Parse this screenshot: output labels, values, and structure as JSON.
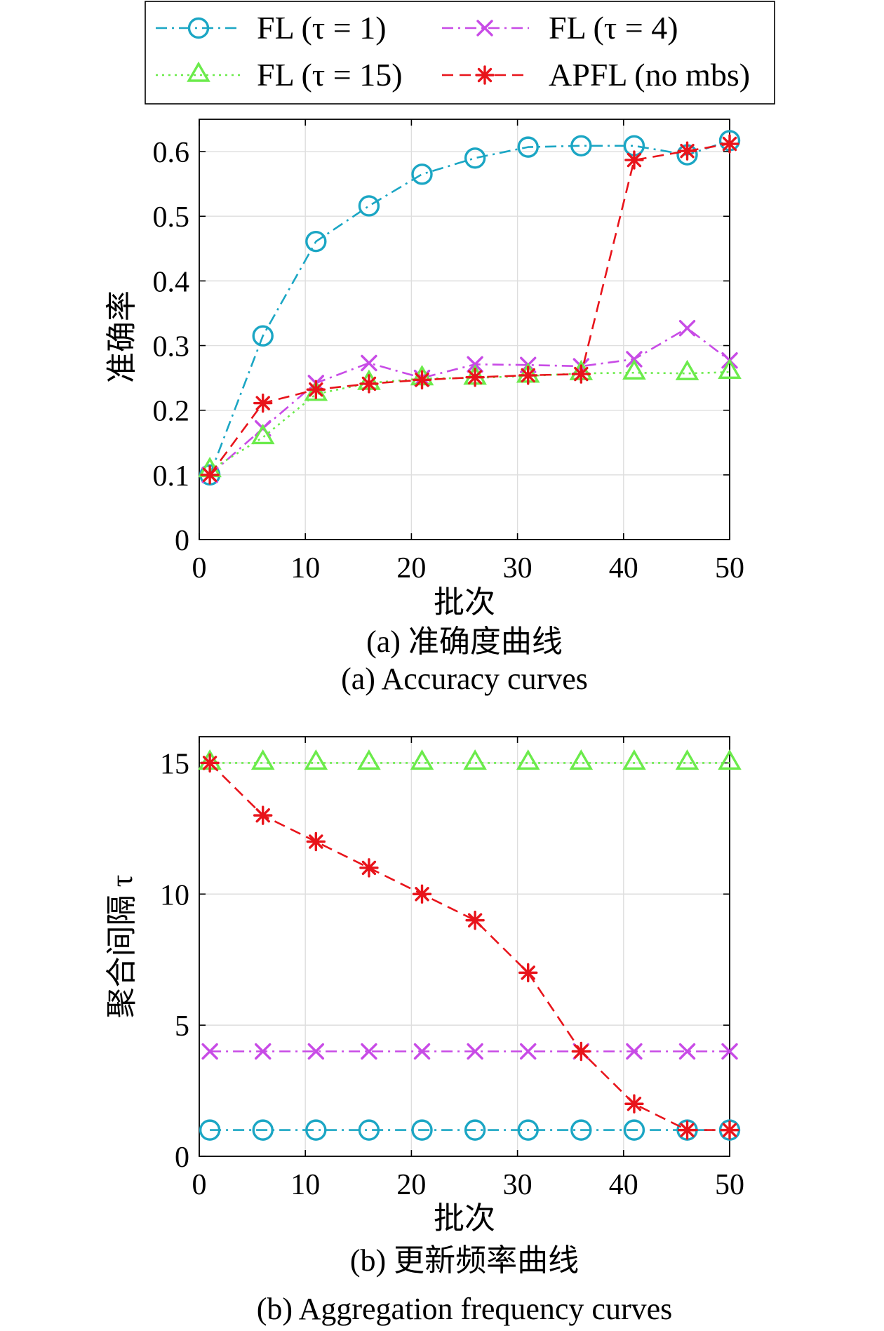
{
  "legend": {
    "placement": "top",
    "entries": [
      {
        "label": "FL (τ = 1)",
        "color": "#1BA6C4",
        "marker": "circle",
        "line_style": "dash-dot"
      },
      {
        "label": "FL (τ = 4)",
        "color": "#C84BE6",
        "marker": "x",
        "line_style": "dash-dot"
      },
      {
        "label": "FL (τ = 15)",
        "color": "#6BEB4B",
        "marker": "triangle",
        "line_style": "dotted"
      },
      {
        "label": "APFL (no mbs)",
        "color": "#E8141B",
        "marker": "asterisk",
        "line_style": "dashed"
      }
    ]
  },
  "chart_data": [
    {
      "type": "line",
      "title": "",
      "xlabel": "批次",
      "ylabel": "准确率",
      "xlim": [
        0,
        50
      ],
      "ylim": [
        0,
        0.65
      ],
      "xticks": [
        0,
        10,
        20,
        30,
        40,
        50
      ],
      "yticks": [
        0,
        0.1,
        0.2,
        0.3,
        0.4,
        0.5,
        0.6
      ],
      "grid": true,
      "x": [
        1,
        6,
        11,
        16,
        21,
        26,
        31,
        36,
        41,
        46,
        50
      ],
      "series": [
        {
          "name": "FL (τ = 1)",
          "values": [
            0.1,
            0.315,
            0.461,
            0.516,
            0.565,
            0.59,
            0.607,
            0.609,
            0.609,
            0.595,
            0.617
          ]
        },
        {
          "name": "FL (τ = 4)",
          "values": [
            0.1,
            0.172,
            0.242,
            0.273,
            0.25,
            0.271,
            0.27,
            0.268,
            0.279,
            0.327,
            0.277
          ]
        },
        {
          "name": "FL (τ = 15)",
          "values": [
            0.107,
            0.158,
            0.225,
            0.242,
            0.249,
            0.25,
            0.253,
            0.257,
            0.258,
            0.257,
            0.259
          ]
        },
        {
          "name": "APFL (no mbs)",
          "values": [
            0.1,
            0.211,
            0.232,
            0.241,
            0.247,
            0.251,
            0.254,
            0.256,
            0.587,
            0.601,
            0.612
          ]
        }
      ],
      "caption": "(a) 准确度曲线",
      "caption_en": "(a) Accuracy curves"
    },
    {
      "type": "line",
      "title": "",
      "xlabel": "批次",
      "ylabel": "聚合间隔 τ",
      "xlim": [
        0,
        50
      ],
      "ylim": [
        0,
        16
      ],
      "xticks": [
        0,
        10,
        20,
        30,
        40,
        50
      ],
      "yticks": [
        0,
        5,
        10,
        15
      ],
      "grid": true,
      "x": [
        1,
        6,
        11,
        16,
        21,
        26,
        31,
        36,
        41,
        46,
        50
      ],
      "series": [
        {
          "name": "FL (τ = 1)",
          "values": [
            1,
            1,
            1,
            1,
            1,
            1,
            1,
            1,
            1,
            1,
            1
          ]
        },
        {
          "name": "FL (τ = 4)",
          "values": [
            4,
            4,
            4,
            4,
            4,
            4,
            4,
            4,
            4,
            4,
            4
          ]
        },
        {
          "name": "FL (τ = 15)",
          "values": [
            15,
            15,
            15,
            15,
            15,
            15,
            15,
            15,
            15,
            15,
            15
          ]
        },
        {
          "name": "APFL (no mbs)",
          "values": [
            15,
            13,
            12,
            11,
            10,
            9,
            7,
            4,
            2,
            1,
            1
          ]
        }
      ],
      "caption": "(b) 更新频率曲线",
      "caption_en": "(b) Aggregation frequency curves"
    }
  ]
}
